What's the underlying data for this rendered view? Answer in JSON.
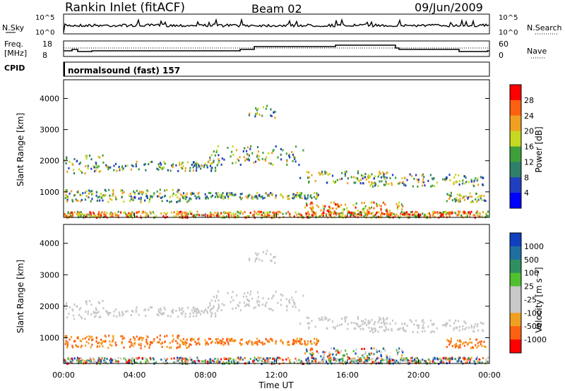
{
  "header": {
    "station": "Rankin Inlet (fitACF)",
    "beam": "Beam 02",
    "date": "09/Jun/2009"
  },
  "noise_panel": {
    "left_label": "N.Sky",
    "left_ticks": [
      "10^5",
      "10^0"
    ],
    "right_label": "N.Search",
    "right_ticks": [
      "10^5",
      "10^0"
    ]
  },
  "freq_panel": {
    "left_label_line1": "Freq.",
    "left_label_line2": "[MHz]",
    "left_ticks": [
      "18",
      "8"
    ],
    "right_label": "Nave",
    "right_ticks": [
      "60",
      "0"
    ]
  },
  "cpid": {
    "label": "CPID",
    "value": "normalsound (fast) 157"
  },
  "chart_data": [
    {
      "type": "heatmap",
      "name": "power",
      "ylabel": "Slant Range [km]",
      "xlabel": "",
      "y_ticks": [
        "1000",
        "2000",
        "3000",
        "4000"
      ],
      "ylim": [
        180,
        4600
      ],
      "colorbar_label": "Power [dB]",
      "colorbar_ticks": [
        "4",
        "8",
        "12",
        "16",
        "20",
        "24",
        "28"
      ],
      "colorbar_colors": [
        "#0000ff",
        "#1f3fc0",
        "#2f7f6a",
        "#3fa03a",
        "#c8d820",
        "#f0a020",
        "#ff6010",
        "#ff0000"
      ]
    },
    {
      "type": "heatmap",
      "name": "velocity",
      "ylabel": "Slant Range [km]",
      "xlabel": "Time UT",
      "y_ticks": [
        "1000",
        "2000",
        "3000",
        "4000"
      ],
      "x_ticks": [
        "00:00",
        "04:00",
        "08:00",
        "12:00",
        "16:00",
        "20:00",
        "00:00"
      ],
      "ylim": [
        180,
        4600
      ],
      "colorbar_label": "Velocity [m s⁻¹]",
      "colorbar_ticks": [
        "1000",
        "500",
        "100",
        "25",
        "-25",
        "-100",
        "-500",
        "-1000"
      ],
      "colorbar_colors": [
        "#1040c0",
        "#1f6fa0",
        "#2f8f60",
        "#50c030",
        "#c8c8c8",
        "#c8c8c8",
        "#f0a020",
        "#ff6010",
        "#ff0000"
      ]
    }
  ]
}
